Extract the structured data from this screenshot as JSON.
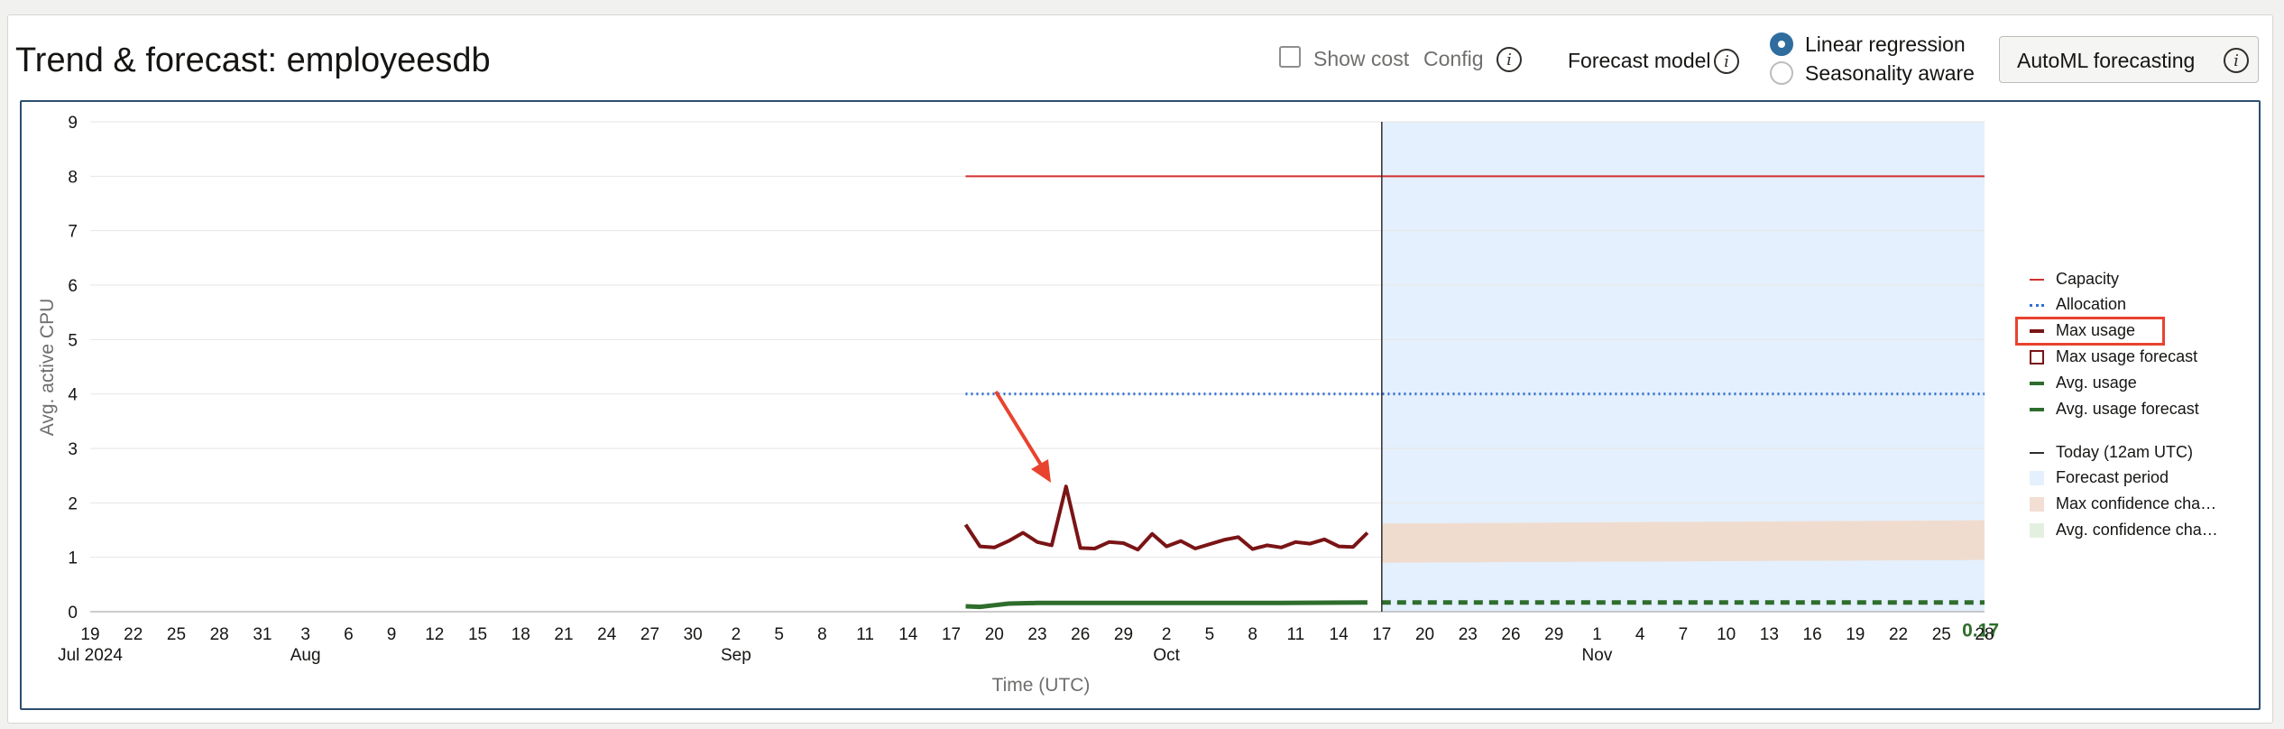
{
  "header": {
    "title": "Trend & forecast: employeesdb",
    "show_cost_label": "Show cost",
    "config_label": "Config",
    "forecast_model_label": "Forecast model",
    "model_options": [
      {
        "label": "Linear regression",
        "selected": true
      },
      {
        "label": "Seasonality aware",
        "selected": false
      }
    ],
    "automl_label": "AutoML forecasting"
  },
  "chart_data": {
    "type": "line",
    "ylabel": "Avg. active CPU",
    "xlabel": "Time (UTC)",
    "ylim": [
      0,
      9
    ],
    "y_ticks": [
      "0",
      "1",
      "2",
      "3",
      "4",
      "5",
      "6",
      "7",
      "8",
      "9"
    ],
    "x_start": "2024-07-19",
    "x_end": "2024-11-28",
    "x_ticks": [
      "19",
      "22",
      "25",
      "28",
      "31",
      "3",
      "6",
      "9",
      "12",
      "15",
      "18",
      "21",
      "24",
      "27",
      "30",
      "2",
      "5",
      "8",
      "11",
      "14",
      "17",
      "20",
      "23",
      "26",
      "29",
      "2",
      "5",
      "8",
      "11",
      "14",
      "17",
      "20",
      "23",
      "26",
      "29",
      "1",
      "4",
      "7",
      "10",
      "13",
      "16",
      "19",
      "22",
      "25",
      "28"
    ],
    "month_labels": [
      "Jul 2024",
      "Aug",
      "Sep",
      "Oct",
      "Nov"
    ],
    "today": "2024-10-17",
    "series": [
      {
        "name": "Capacity",
        "color": "#d32f2f",
        "style": "solid",
        "x_range": [
          "2024-09-18",
          "2024-11-28"
        ],
        "value": 8
      },
      {
        "name": "Allocation",
        "color": "#2e6fd8",
        "style": "dotted",
        "x_range": [
          "2024-09-18",
          "2024-11-28"
        ],
        "value": 4
      },
      {
        "name": "Max usage",
        "color": "#7a1416",
        "style": "solid",
        "x": [
          "2024-09-18",
          "2024-09-19",
          "2024-09-20",
          "2024-09-21",
          "2024-09-22",
          "2024-09-23",
          "2024-09-24",
          "2024-09-25",
          "2024-09-26",
          "2024-09-27",
          "2024-09-28",
          "2024-09-29",
          "2024-09-30",
          "2024-10-01",
          "2024-10-02",
          "2024-10-03",
          "2024-10-04",
          "2024-10-05",
          "2024-10-06",
          "2024-10-07",
          "2024-10-08",
          "2024-10-09",
          "2024-10-10",
          "2024-10-11",
          "2024-10-12",
          "2024-10-13",
          "2024-10-14",
          "2024-10-15",
          "2024-10-16"
        ],
        "values": [
          1.6,
          1.2,
          1.18,
          1.3,
          1.45,
          1.28,
          1.22,
          2.3,
          1.17,
          1.16,
          1.28,
          1.26,
          1.14,
          1.43,
          1.2,
          1.3,
          1.16,
          1.24,
          1.32,
          1.37,
          1.15,
          1.22,
          1.18,
          1.28,
          1.25,
          1.33,
          1.2,
          1.19,
          1.45
        ]
      },
      {
        "name": "Max usage forecast",
        "color": "#7a1416",
        "style": "band"
      },
      {
        "name": "Avg. usage",
        "color": "#2e6d2c",
        "style": "solid",
        "x": [
          "2024-09-18",
          "2024-09-19",
          "2024-09-20",
          "2024-09-21",
          "2024-09-23",
          "2024-09-26",
          "2024-10-01",
          "2024-10-05",
          "2024-10-10",
          "2024-10-16"
        ],
        "values": [
          0.1,
          0.09,
          0.12,
          0.15,
          0.16,
          0.16,
          0.16,
          0.16,
          0.16,
          0.17
        ]
      },
      {
        "name": "Avg. usage forecast",
        "color": "#2e6d2c",
        "style": "dashed",
        "x_range": [
          "2024-10-17",
          "2024-11-28"
        ],
        "value": 0.17
      }
    ],
    "max_confidence_band": {
      "x_range": [
        "2024-10-17",
        "2024-11-28"
      ],
      "lower": [
        0.9,
        0.95
      ],
      "upper": [
        1.62,
        1.68
      ]
    },
    "end_label": "0.17",
    "legend": {
      "placement": "right",
      "items": [
        {
          "label": "Capacity",
          "swatch": "line",
          "color": "#d32f2f"
        },
        {
          "label": "Allocation",
          "swatch": "dotted",
          "color": "#2e6fd8"
        },
        {
          "label": "Max usage",
          "swatch": "thick",
          "color": "#7a1416",
          "highlighted": true
        },
        {
          "label": "Max usage forecast",
          "swatch": "box",
          "color": "#7a1416"
        },
        {
          "label": "Avg. usage",
          "swatch": "thick",
          "color": "#2e6d2c"
        },
        {
          "label": "Avg. usage forecast",
          "swatch": "dashed",
          "color": "#2e6d2c"
        },
        {
          "label": "Today (12am UTC)",
          "swatch": "line",
          "color": "#312d2a"
        },
        {
          "label": "Forecast period",
          "swatch": "fill",
          "color": "#e4f0fd"
        },
        {
          "label": "Max confidence cha…",
          "swatch": "fill",
          "color": "#f2ded3"
        },
        {
          "label": "Avg. confidence cha…",
          "swatch": "fill",
          "color": "#e3f0e0"
        }
      ]
    },
    "colors": {
      "forecast_period": "#e4f0fd",
      "max_confidence": "#f0dccf",
      "annotation_arrow": "#e8432e",
      "highlight_box": "#e8432e"
    }
  }
}
